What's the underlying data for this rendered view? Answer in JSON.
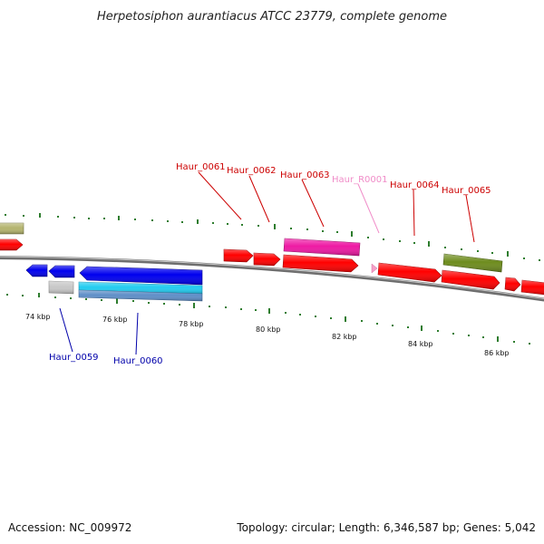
{
  "title": "Herpetosiphon aurantiacus ATCC 23779, complete genome",
  "accession": "Accession: NC_009972",
  "summary": "Topology: circular; Length: 6,346,587 bp; Genes: 5,042",
  "colors": {
    "gene_red": "#ff0000",
    "gene_blue": "#0000ee",
    "gene_cyan": "#22ccf0",
    "gene_steel": "#5f8fc8",
    "gene_grey": "#c8c8c8",
    "gene_magenta": "#ee1aa4",
    "gene_olive": "#6e8c1e",
    "gene_khaki": "#b4b46e",
    "label_top": "#cc0000",
    "label_bottom": "#0000aa",
    "label_rna": "#f08cc8",
    "tick": "#2e7d2e",
    "backbone": "#777777"
  },
  "scale_labels": [
    "74 kbp",
    "76 kbp",
    "78 kbp",
    "80 kbp",
    "82 kbp",
    "84 kbp",
    "86 kbp"
  ],
  "gene_labels_top": [
    "Haur_0061",
    "Haur_0062",
    "Haur_0063",
    "Haur_R0001",
    "Haur_0064",
    "Haur_0065"
  ],
  "gene_labels_bottom": [
    "Haur_0059",
    "Haur_0060"
  ]
}
